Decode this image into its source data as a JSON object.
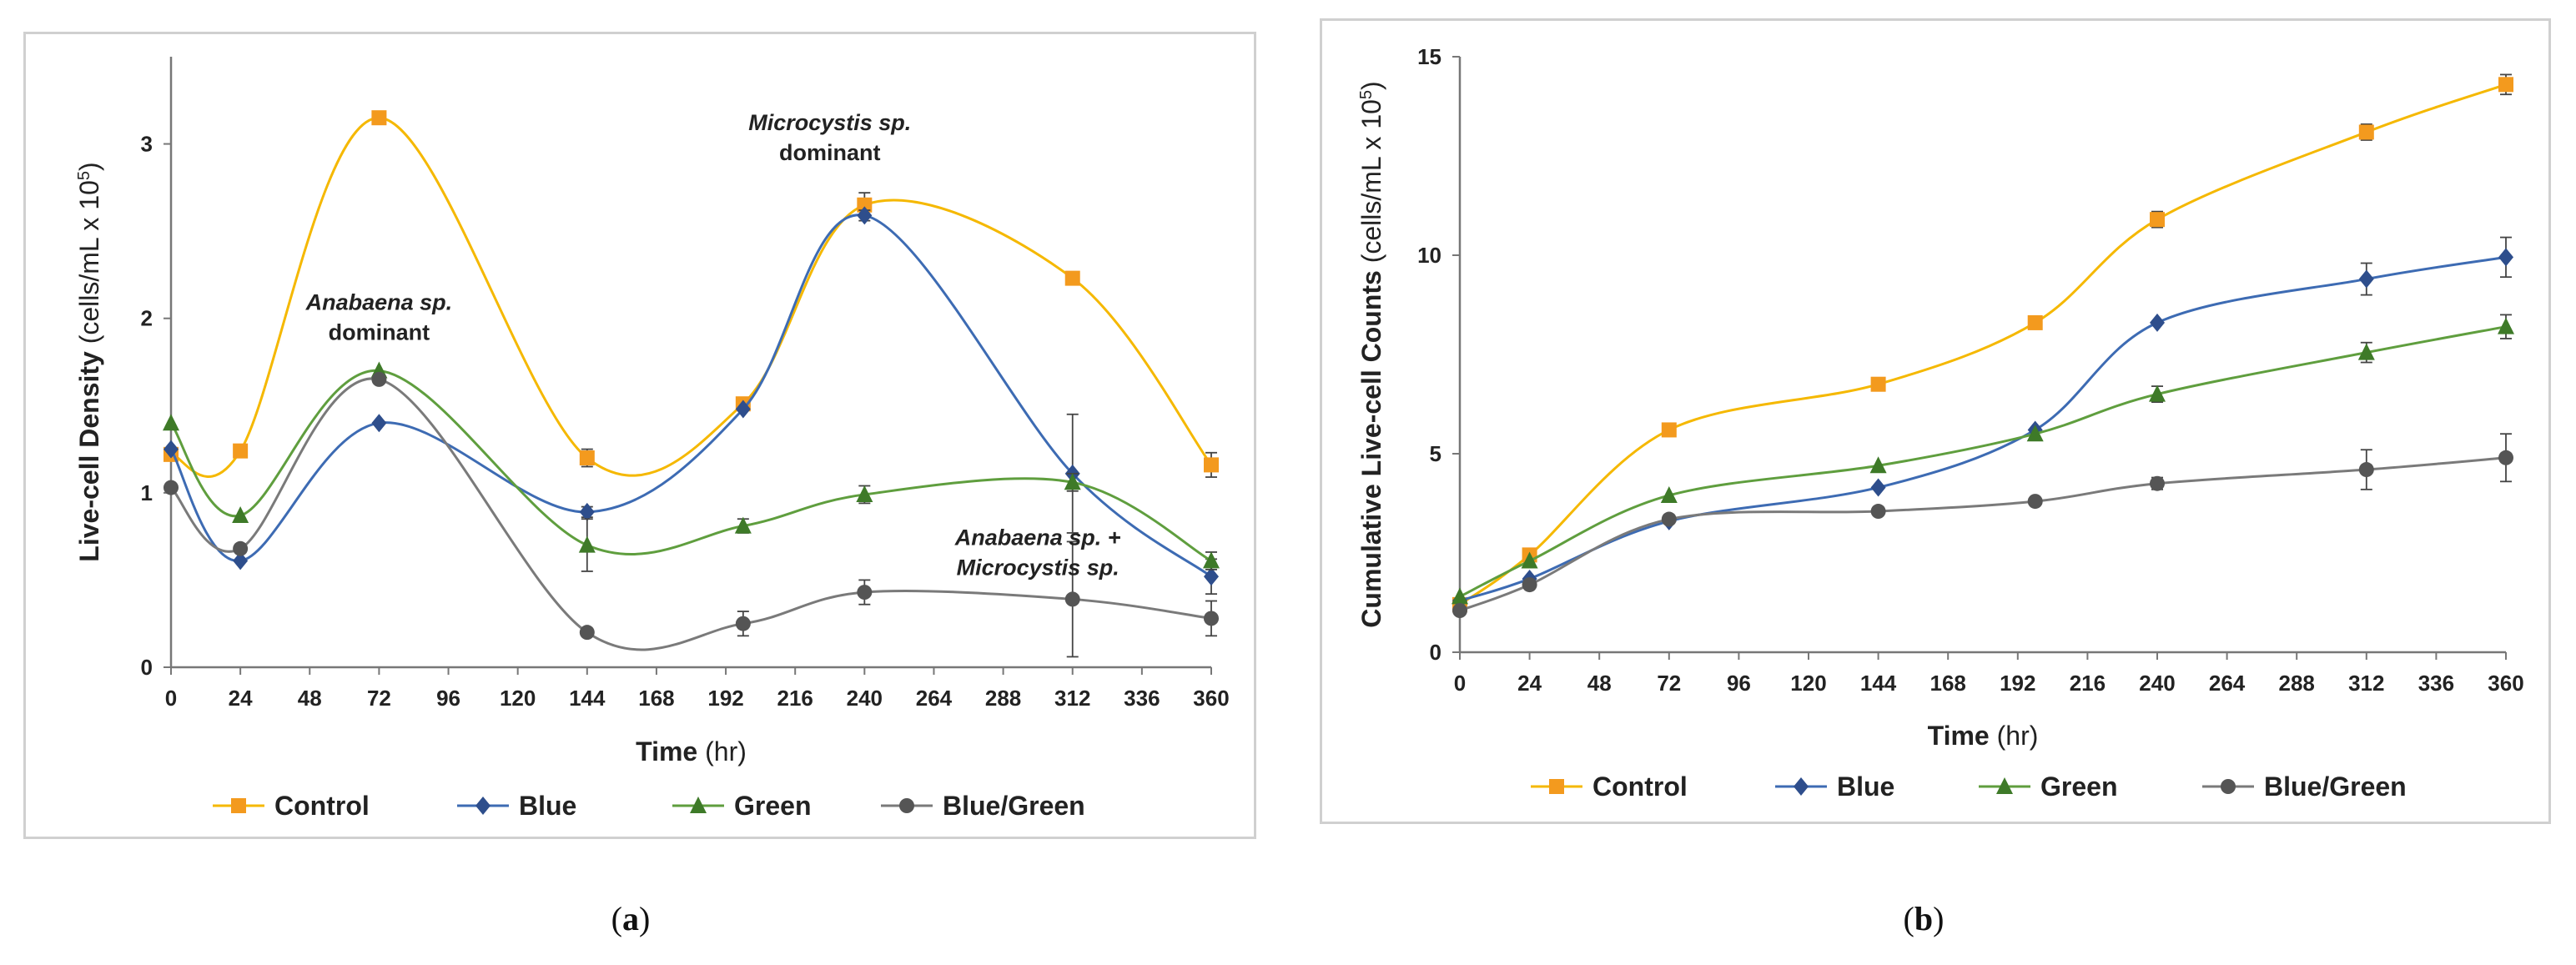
{
  "colors": {
    "control": "#F5B800",
    "blue": "#3D6BB3",
    "green": "#5F9E3E",
    "bluegreen": "#7A7A7A",
    "control_marker": "#F39A1E",
    "blue_marker": "#2E4E8C",
    "green_marker": "#3E7A28",
    "bluegreen_marker": "#555555"
  },
  "chart_data": [
    {
      "type": "line",
      "panel": "a",
      "caption": {
        "open": "(",
        "label": "a",
        "close": ")"
      },
      "ylabel": {
        "main": "Live-cell Density",
        "unit": "(cells/mL x 10",
        "sup": "5",
        "close": ")"
      },
      "xlabel": {
        "main": "Time",
        "unit": "(hr)"
      },
      "xlim": [
        0,
        360
      ],
      "ylim": [
        0,
        3.5
      ],
      "xticks": [
        0,
        24,
        48,
        72,
        96,
        120,
        144,
        168,
        192,
        216,
        240,
        264,
        288,
        312,
        336,
        360
      ],
      "yticks": [
        0,
        1,
        2,
        3
      ],
      "x": [
        0,
        24,
        72,
        144,
        198,
        240,
        312,
        360
      ],
      "series": [
        {
          "key": "control",
          "name": "Control",
          "marker": "square",
          "values": [
            1.22,
            1.24,
            3.15,
            1.2,
            1.51,
            2.65,
            2.23,
            1.16
          ],
          "errors": [
            0,
            0,
            0,
            0.05,
            0.03,
            0.07,
            0,
            0.07
          ]
        },
        {
          "key": "blue",
          "name": "Blue",
          "marker": "diamond",
          "values": [
            1.25,
            0.61,
            1.4,
            0.89,
            1.48,
            2.59,
            1.11,
            0.52
          ],
          "errors": [
            0,
            0,
            0,
            0.03,
            0,
            0.03,
            0.34,
            0.1
          ]
        },
        {
          "key": "green",
          "name": "Green",
          "marker": "triangle",
          "values": [
            1.4,
            0.87,
            1.7,
            0.7,
            0.81,
            0.99,
            1.06,
            0.61
          ],
          "errors": [
            0,
            0,
            0,
            0.15,
            0.04,
            0.05,
            0.05,
            0.05
          ]
        },
        {
          "key": "bluegreen",
          "name": "Blue/Green",
          "marker": "circle",
          "values": [
            1.03,
            0.68,
            1.65,
            0.2,
            0.25,
            0.43,
            0.39,
            0.28
          ],
          "errors": [
            0,
            0,
            0,
            0.02,
            0.07,
            0.07,
            0.33,
            0.1
          ]
        }
      ],
      "annotations": [
        {
          "lines": [
            "Anabaena sp.",
            "dominant"
          ],
          "italic_first": true,
          "x": 72,
          "y": 2.05
        },
        {
          "lines": [
            "Microcystis sp.",
            "dominant"
          ],
          "italic_first": true,
          "x": 228,
          "y": 3.08
        },
        {
          "lines": [
            "Anabaena sp. +",
            "Microcystis sp."
          ],
          "italic_first": true,
          "italic_all": true,
          "x": 300,
          "y": 0.7
        }
      ]
    },
    {
      "type": "line",
      "panel": "b",
      "caption": {
        "open": "(",
        "label": "b",
        "close": ")"
      },
      "ylabel": {
        "main": "Cumulative Live-cell Counts",
        "unit": "(cells/mL x 10",
        "sup": "5",
        "close": ")"
      },
      "xlabel": {
        "main": "Time",
        "unit": "(hr)"
      },
      "xlim": [
        0,
        360
      ],
      "ylim": [
        0,
        15
      ],
      "xticks": [
        0,
        24,
        48,
        72,
        96,
        120,
        144,
        168,
        192,
        216,
        240,
        264,
        288,
        312,
        336,
        360
      ],
      "yticks": [
        0,
        5,
        10,
        15
      ],
      "x": [
        0,
        24,
        72,
        144,
        198,
        240,
        312,
        360
      ],
      "series": [
        {
          "key": "control",
          "name": "Control",
          "marker": "square",
          "values": [
            1.2,
            2.45,
            5.6,
            6.75,
            8.3,
            10.9,
            13.1,
            14.3
          ],
          "errors": [
            0,
            0,
            0,
            0,
            0,
            0.2,
            0.2,
            0.25
          ]
        },
        {
          "key": "blue",
          "name": "Blue",
          "marker": "diamond",
          "values": [
            1.3,
            1.85,
            3.3,
            4.15,
            5.6,
            8.3,
            9.4,
            9.95
          ],
          "errors": [
            0,
            0,
            0,
            0,
            0,
            0,
            0.4,
            0.5
          ]
        },
        {
          "key": "green",
          "name": "Green",
          "marker": "triangle",
          "values": [
            1.4,
            2.3,
            3.95,
            4.7,
            5.5,
            6.5,
            7.55,
            8.2
          ],
          "errors": [
            0,
            0,
            0,
            0,
            0,
            0.2,
            0.25,
            0.3
          ]
        },
        {
          "key": "bluegreen",
          "name": "Blue/Green",
          "marker": "circle",
          "values": [
            1.05,
            1.7,
            3.35,
            3.55,
            3.8,
            4.25,
            4.6,
            4.9
          ],
          "errors": [
            0,
            0,
            0,
            0,
            0,
            0.15,
            0.5,
            0.6
          ]
        }
      ],
      "annotations": []
    }
  ]
}
